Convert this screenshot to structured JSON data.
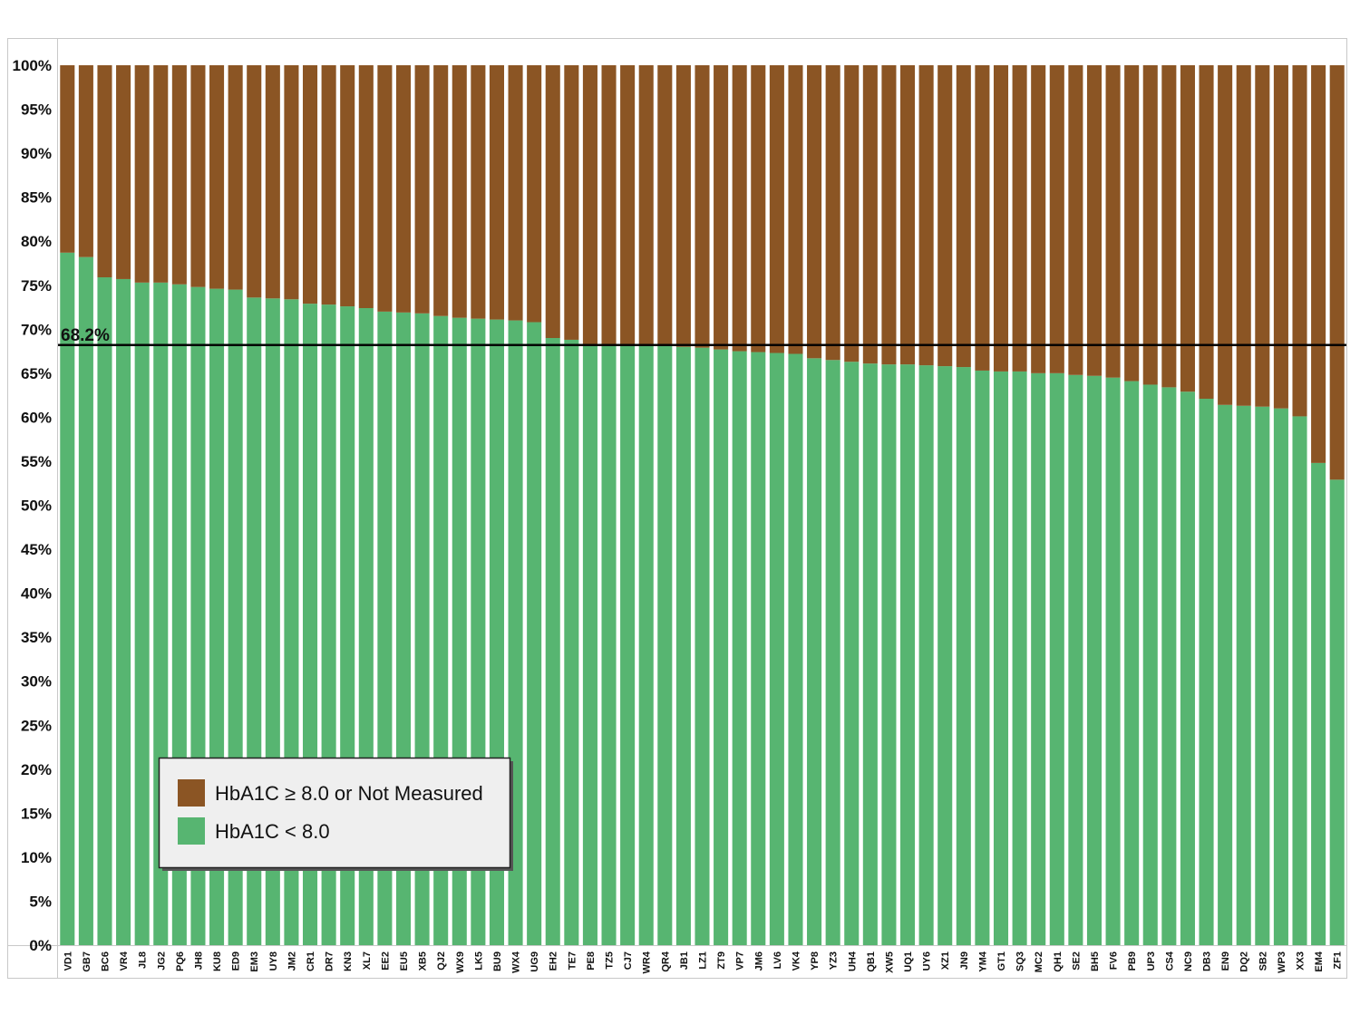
{
  "chart_data": {
    "type": "bar",
    "stacked": true,
    "ylim": [
      0,
      100
    ],
    "y_ticks": [
      "0%",
      "5%",
      "10%",
      "15%",
      "20%",
      "25%",
      "30%",
      "35%",
      "40%",
      "45%",
      "50%",
      "55%",
      "60%",
      "65%",
      "70%",
      "75%",
      "80%",
      "85%",
      "90%",
      "95%",
      "100%"
    ],
    "categories": [
      "VD1",
      "GB7",
      "BC6",
      "VR4",
      "JL8",
      "JG2",
      "PQ6",
      "JH8",
      "KU8",
      "ED9",
      "EM3",
      "UY8",
      "JM2",
      "CR1",
      "DR7",
      "KN3",
      "XL7",
      "EE2",
      "EU5",
      "XB5",
      "QJ2",
      "WX9",
      "LK5",
      "BU9",
      "WX4",
      "UG9",
      "EH2",
      "TE7",
      "PE8",
      "TZ5",
      "CJ7",
      "WR4",
      "QR4",
      "JB1",
      "LZ1",
      "ZT9",
      "VP7",
      "JM6",
      "LV6",
      "VK4",
      "YP8",
      "YZ3",
      "UH4",
      "QB1",
      "XW5",
      "UQ1",
      "UY6",
      "XZ1",
      "JN9",
      "YM4",
      "GT1",
      "SQ3",
      "MC2",
      "QH1",
      "SE2",
      "BH5",
      "FV6",
      "PB9",
      "UP3",
      "CS4",
      "NC9",
      "DB3",
      "EN9",
      "DQ2",
      "SB2",
      "WP3",
      "XX3",
      "EM4",
      "ZF1"
    ],
    "series": [
      {
        "name": "HbA1C < 8.0",
        "color": "#57b571",
        "values": [
          78.7,
          78.2,
          75.9,
          75.7,
          75.3,
          75.3,
          75.1,
          74.8,
          74.6,
          74.5,
          73.6,
          73.5,
          73.4,
          72.9,
          72.8,
          72.6,
          72.4,
          72.0,
          71.9,
          71.8,
          71.5,
          71.3,
          71.2,
          71.1,
          71.0,
          70.8,
          69.0,
          68.8,
          68.2,
          68.2,
          68.2,
          68.2,
          68.2,
          68.0,
          67.9,
          67.7,
          67.5,
          67.4,
          67.3,
          67.2,
          66.7,
          66.5,
          66.3,
          66.1,
          66.0,
          66.0,
          65.9,
          65.8,
          65.7,
          65.3,
          65.2,
          65.2,
          65.0,
          65.0,
          64.8,
          64.7,
          64.5,
          64.1,
          63.7,
          63.4,
          62.9,
          62.1,
          61.4,
          61.3,
          61.2,
          61.0,
          60.1,
          54.8,
          52.9
        ]
      },
      {
        "name": "HbA1C ≥ 8.0 or Not Measured",
        "color": "#8b5524",
        "values": [
          21.3,
          21.8,
          24.1,
          24.3,
          24.7,
          24.7,
          24.9,
          25.2,
          25.4,
          25.5,
          26.4,
          26.5,
          26.6,
          27.1,
          27.2,
          27.4,
          27.6,
          28.0,
          28.1,
          28.2,
          28.5,
          28.7,
          28.8,
          28.9,
          29.0,
          29.2,
          31.0,
          31.2,
          31.8,
          31.8,
          31.8,
          31.8,
          31.8,
          32.0,
          32.1,
          32.3,
          32.5,
          32.6,
          32.7,
          32.8,
          33.3,
          33.5,
          33.7,
          33.9,
          34.0,
          34.0,
          34.1,
          34.2,
          34.3,
          34.7,
          34.8,
          34.8,
          35.0,
          35.0,
          35.2,
          35.3,
          35.5,
          35.9,
          36.3,
          36.6,
          37.1,
          37.9,
          38.6,
          38.7,
          38.8,
          39.0,
          39.9,
          45.2,
          47.1
        ]
      }
    ],
    "reference_line": {
      "value": 68.2,
      "label": "68.2%"
    },
    "grid": false,
    "legend_position": "bottom-left",
    "legend": [
      {
        "label": "HbA1C ≥ 8.0 or Not Measured",
        "color": "#8b5524"
      },
      {
        "label": "HbA1C < 8.0",
        "color": "#57b571"
      }
    ]
  }
}
